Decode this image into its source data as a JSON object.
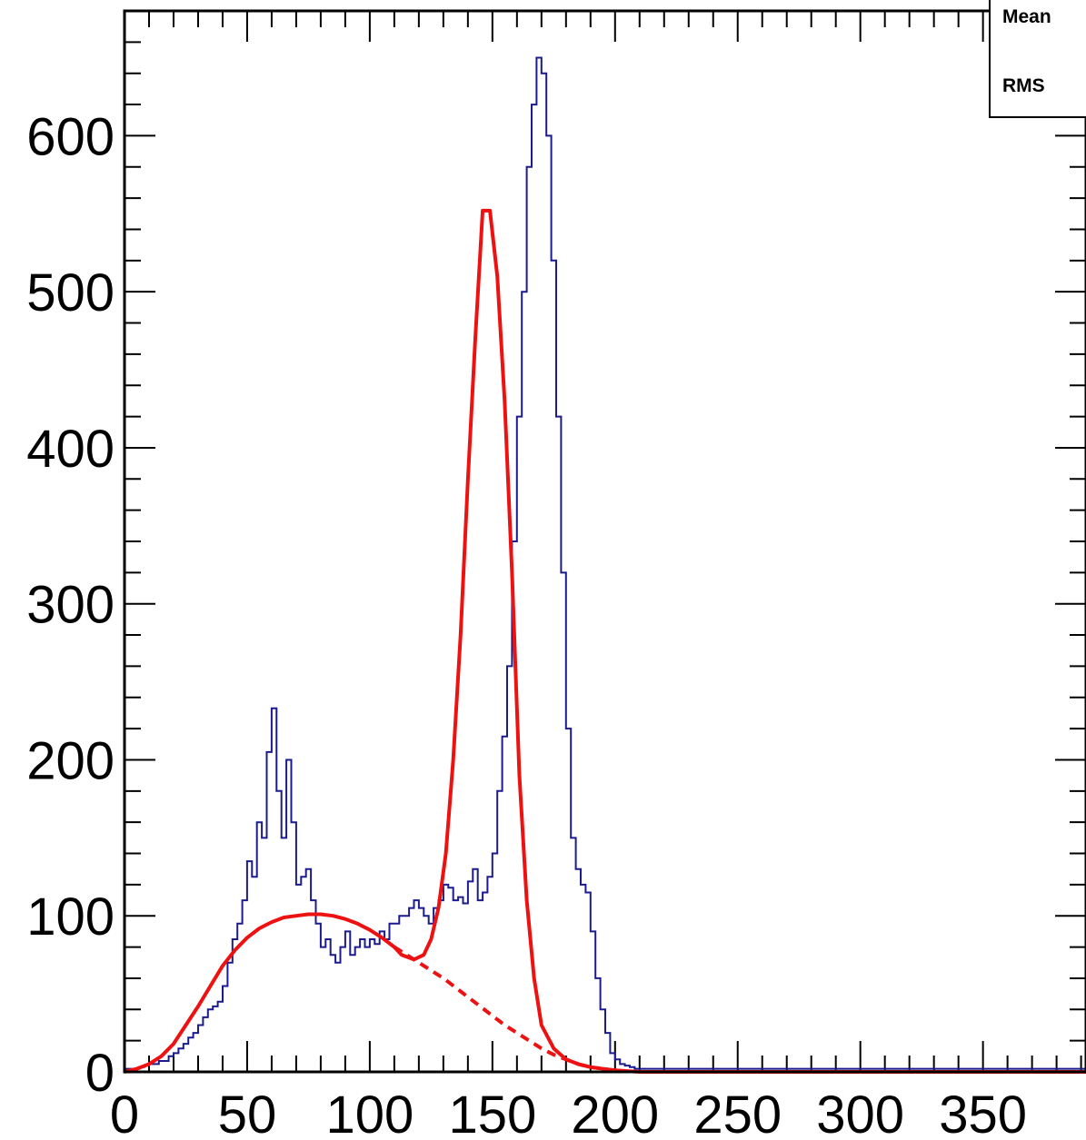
{
  "chart_data": {
    "type": "line",
    "title": "",
    "xlabel": "",
    "ylabel": "",
    "xlim": [
      0,
      392
    ],
    "ylim": [
      0,
      680
    ],
    "x_ticks": [
      0,
      50,
      100,
      150,
      200,
      250,
      300,
      350
    ],
    "y_ticks": [
      0,
      100,
      200,
      300,
      400,
      500,
      600
    ],
    "stats_box": {
      "labels": [
        "Mean",
        "RMS"
      ]
    },
    "colors": {
      "histogram": "#1b1b8f",
      "fit": "#ee1111",
      "axes": "#000000"
    },
    "series": [
      {
        "kind": "histogram",
        "style": "step",
        "bin_width": 2,
        "x_start": 0,
        "values": [
          2,
          2,
          2,
          3,
          4,
          5,
          5,
          7,
          7,
          10,
          12,
          15,
          18,
          22,
          25,
          30,
          35,
          40,
          42,
          45,
          55,
          70,
          85,
          95,
          110,
          135,
          125,
          160,
          150,
          205,
          233,
          180,
          150,
          200,
          160,
          120,
          125,
          130,
          110,
          95,
          80,
          85,
          75,
          70,
          80,
          90,
          75,
          80,
          85,
          80,
          85,
          82,
          90,
          85,
          95,
          95,
          100,
          100,
          105,
          110,
          105,
          100,
          95,
          105,
          110,
          120,
          118,
          110,
          112,
          108,
          122,
          130,
          110,
          115,
          125,
          140,
          180,
          215,
          260,
          340,
          420,
          500,
          580,
          620,
          650,
          640,
          600,
          520,
          420,
          320,
          220,
          150,
          130,
          120,
          115,
          90,
          60,
          40,
          25,
          12,
          8,
          5,
          4,
          3,
          2,
          2,
          2,
          2,
          2,
          2,
          2,
          2,
          2,
          2,
          2,
          2,
          2,
          2,
          2,
          2,
          2,
          2,
          2,
          2,
          2,
          2,
          2,
          2,
          2,
          2,
          2,
          2,
          2,
          2,
          2,
          2,
          2,
          2,
          2,
          2,
          2,
          2,
          2,
          2,
          2,
          2,
          2,
          2,
          2,
          2,
          2,
          2,
          2,
          2,
          2,
          2,
          2,
          2,
          2,
          2,
          2,
          2,
          2,
          2,
          2,
          2,
          2,
          2,
          2,
          2,
          2,
          2,
          2,
          2,
          2,
          2,
          2,
          2,
          2,
          2,
          2,
          2,
          2,
          2,
          2,
          2,
          2,
          2,
          2,
          2,
          2,
          2,
          2,
          2,
          2,
          2
        ]
      },
      {
        "kind": "fit",
        "style": "solid",
        "x": [
          0,
          5,
          10,
          15,
          20,
          25,
          30,
          35,
          40,
          45,
          50,
          55,
          60,
          65,
          70,
          75,
          80,
          85,
          90,
          95,
          100,
          105,
          110,
          113,
          118,
          122,
          125,
          128,
          131,
          134,
          137,
          140,
          143,
          146,
          149,
          152,
          155,
          158,
          161,
          164,
          167,
          170,
          175,
          180,
          185,
          190,
          200,
          210,
          250,
          300,
          350,
          392
        ],
        "y": [
          0,
          2,
          5,
          10,
          18,
          30,
          42,
          55,
          68,
          78,
          86,
          92,
          96,
          99,
          100,
          101,
          101,
          100,
          98,
          95,
          91,
          86,
          80,
          75,
          72,
          75,
          85,
          105,
          140,
          200,
          280,
          380,
          470,
          552,
          552,
          510,
          430,
          320,
          190,
          110,
          60,
          30,
          15,
          8,
          5,
          3,
          1,
          0,
          0,
          0,
          0,
          0
        ]
      },
      {
        "kind": "background",
        "style": "dashed",
        "x": [
          110,
          115,
          120,
          125,
          130,
          135,
          140,
          145,
          150,
          155,
          160,
          165,
          170,
          175,
          180,
          185,
          190,
          195,
          200
        ],
        "y": [
          80,
          75,
          70,
          65,
          60,
          54,
          48,
          42,
          36,
          30,
          25,
          20,
          15,
          11,
          8,
          5,
          3,
          2,
          1
        ]
      }
    ]
  }
}
